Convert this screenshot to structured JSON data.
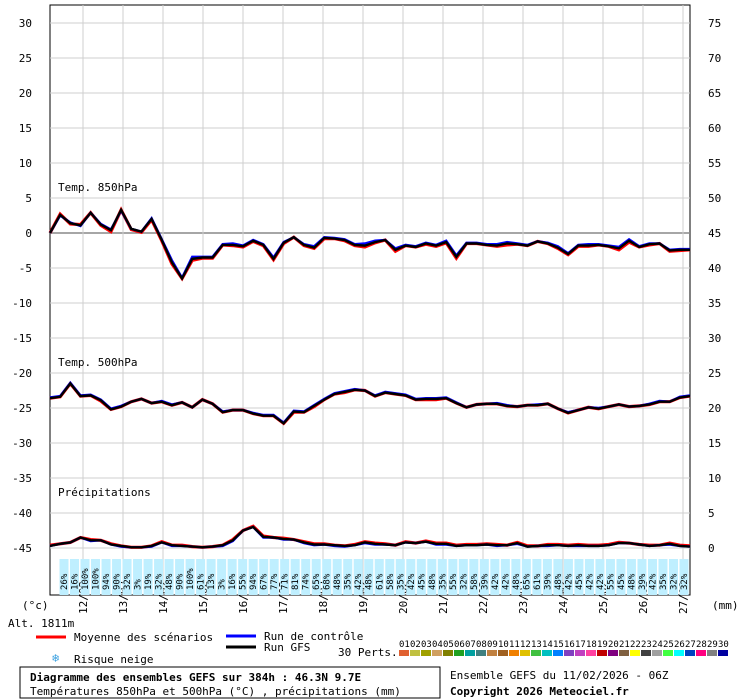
{
  "chart_data": {
    "type": "line",
    "title": "Diagramme des ensembles GEFS sur 384h : 46.3N 9.7E",
    "subtitle": "Températures 850hPa et 500hPa (°C) , précipitations (mm)",
    "run_info": "Ensemble GEFS du 11/02/2026 - 06Z",
    "copyright": "Copyright 2026 Meteociel.fr",
    "altitude": "Alt. 1811m",
    "y_left": {
      "label": "(°c)",
      "min": -45,
      "max": 30,
      "step": 5,
      "ticks": [
        "30",
        "25",
        "20",
        "15",
        "10",
        "5",
        "0",
        "-5",
        "-10",
        "-15",
        "-20",
        "-25",
        "-30",
        "-35",
        "-40",
        "-45"
      ]
    },
    "y_right": {
      "label": "(mm)",
      "min": 0,
      "max": 75,
      "step": 5,
      "ticks": [
        "75",
        "70",
        "65",
        "60",
        "55",
        "50",
        "45",
        "40",
        "35",
        "30",
        "25",
        "20",
        "15",
        "10",
        "5",
        "0"
      ]
    },
    "x_dates": [
      "12/02",
      "13/02",
      "14/02",
      "15/02",
      "16/02",
      "17/02",
      "18/02",
      "19/02",
      "20/02",
      "21/02",
      "22/02",
      "23/02",
      "24/02",
      "25/02",
      "26/02",
      "27/02"
    ],
    "sections": {
      "t850": "Temp. 850hPa",
      "t500": "Temp. 500hPa",
      "precip": "Précipitations"
    },
    "snow_risk": [
      "26%",
      "16%",
      "100%",
      "100%",
      "94%",
      "90%",
      "32%",
      "3%",
      "19%",
      "32%",
      "48%",
      "90%",
      "100%",
      "61%",
      "13%",
      "3%",
      "16%",
      "55%",
      "94%",
      "67%",
      "77%",
      "71%",
      "81%",
      "74%",
      "65%",
      "68%",
      "48%",
      "35%",
      "42%",
      "48%",
      "61%",
      "58%",
      "35%",
      "42%",
      "45%",
      "48%",
      "35%",
      "55%",
      "32%",
      "58%",
      "39%",
      "42%",
      "42%",
      "48%",
      "65%",
      "61%",
      "39%",
      "48%",
      "42%",
      "45%",
      "42%",
      "42%",
      "55%",
      "45%",
      "48%",
      "39%",
      "42%",
      "35%",
      "32%",
      "32%"
    ],
    "series": [
      {
        "name": "Moyenne des scénarios",
        "color": "#ff0000",
        "t850": [
          0,
          2.7,
          1.3,
          1.2,
          2.9,
          1.1,
          0.2,
          3.3,
          0.5,
          0.1,
          1.9,
          -1.1,
          -4.4,
          -6.5,
          -3.9,
          -3.6,
          -3.6,
          -1.7,
          -1.8,
          -2,
          -1.2,
          -1.8,
          -3.8,
          -1.5,
          -0.6,
          -1.8,
          -2.2,
          -0.8,
          -0.8,
          -1.1,
          -1.8,
          -2,
          -1.4,
          -1,
          -2.6,
          -1.8,
          -2,
          -1.6,
          -1.9,
          -1.4,
          -3.6,
          -1.5,
          -1.5,
          -1.7,
          -1.9,
          -1.7,
          -1.6,
          -1.8,
          -1.2,
          -1.5,
          -2.2,
          -3.1,
          -1.9,
          -1.9,
          -1.7,
          -1.9,
          -2.4,
          -1.3,
          -2,
          -1.7,
          -1.5,
          -2.6,
          -2.5,
          -2.4
        ],
        "t500": [
          -23.6,
          -23.4,
          -21.5,
          -23.3,
          -23.2,
          -24,
          -25.2,
          -24.8,
          -24.1,
          -23.7,
          -24.3,
          -24.1,
          -24.6,
          -24.2,
          -24.9,
          -23.8,
          -24.4,
          -25.6,
          -25.3,
          -25.3,
          -25.8,
          -26.1,
          -26.1,
          -27.2,
          -25.6,
          -25.6,
          -24.8,
          -23.8,
          -23,
          -22.8,
          -22.4,
          -22.5,
          -23.3,
          -22.8,
          -23,
          -23.2,
          -23.8,
          -23.8,
          -23.8,
          -23.6,
          -24.3,
          -24.9,
          -24.5,
          -24.4,
          -24.4,
          -24.7,
          -24.8,
          -24.6,
          -24.6,
          -24.4,
          -25.1,
          -25.7,
          -25.3,
          -24.9,
          -25.1,
          -24.8,
          -24.5,
          -24.8,
          -24.7,
          -24.5,
          -24.1,
          -24.1,
          -23.5,
          -23.3
        ],
        "precip": [
          0.4,
          0.6,
          0.8,
          1.5,
          1.2,
          1.1,
          0.6,
          0.3,
          0.1,
          0.1,
          0.3,
          0.9,
          0.4,
          0.4,
          0.2,
          0.1,
          0.2,
          0.4,
          1.2,
          2.5,
          3.1,
          1.7,
          1.5,
          1.4,
          1.2,
          0.9,
          0.6,
          0.6,
          0.4,
          0.3,
          0.5,
          0.9,
          0.7,
          0.6,
          0.4,
          0.9,
          0.7,
          1,
          0.7,
          0.7,
          0.4,
          0.5,
          0.5,
          0.6,
          0.5,
          0.4,
          0.8,
          0.3,
          0.3,
          0.5,
          0.5,
          0.4,
          0.5,
          0.4,
          0.4,
          0.5,
          0.8,
          0.7,
          0.5,
          0.4,
          0.4,
          0.7,
          0.4,
          0.3
        ]
      },
      {
        "name": "Run de contrôle",
        "color": "#0000ff",
        "t850": [
          0,
          2.5,
          1.5,
          1,
          2.9,
          1.3,
          0.5,
          3.2,
          0.6,
          0.2,
          2.1,
          -0.9,
          -3.9,
          -6.4,
          -3.4,
          -3.4,
          -3.4,
          -1.6,
          -1.5,
          -1.8,
          -1,
          -1.6,
          -3.5,
          -1.3,
          -0.6,
          -1.6,
          -1.9,
          -0.6,
          -0.7,
          -0.9,
          -1.6,
          -1.5,
          -1.1,
          -1,
          -2.2,
          -1.7,
          -1.9,
          -1.4,
          -1.7,
          -1.1,
          -3.2,
          -1.4,
          -1.4,
          -1.6,
          -1.6,
          -1.3,
          -1.5,
          -1.7,
          -1.2,
          -1.4,
          -1.9,
          -2.9,
          -1.7,
          -1.6,
          -1.6,
          -1.8,
          -2,
          -0.9,
          -1.9,
          -1.5,
          -1.5,
          -2.4,
          -2.3,
          -2.3
        ],
        "t500": [
          -23.5,
          -23.3,
          -21.4,
          -23.2,
          -23.1,
          -23.8,
          -25.1,
          -24.7,
          -24.1,
          -23.7,
          -24.3,
          -24,
          -24.5,
          -24.2,
          -24.9,
          -23.8,
          -24.4,
          -25.5,
          -25.3,
          -25.3,
          -25.7,
          -26,
          -26,
          -27.1,
          -25.4,
          -25.5,
          -24.6,
          -23.7,
          -22.9,
          -22.6,
          -22.3,
          -22.5,
          -23.2,
          -22.7,
          -22.9,
          -23.1,
          -23.7,
          -23.6,
          -23.6,
          -23.5,
          -24.2,
          -24.9,
          -24.5,
          -24.4,
          -24.3,
          -24.6,
          -24.8,
          -24.6,
          -24.5,
          -24.4,
          -25.1,
          -25.6,
          -25.3,
          -24.9,
          -25,
          -24.8,
          -24.5,
          -24.8,
          -24.7,
          -24.4,
          -24,
          -24.1,
          -23.4,
          -23.2
        ],
        "precip": [
          0.3,
          0.6,
          0.8,
          1.5,
          1,
          1.1,
          0.5,
          0.2,
          0.1,
          0.1,
          0.2,
          0.8,
          0.3,
          0.3,
          0.2,
          0.1,
          0.2,
          0.3,
          1,
          2.5,
          3,
          1.5,
          1.5,
          1.2,
          1.2,
          0.7,
          0.4,
          0.5,
          0.3,
          0.2,
          0.4,
          0.7,
          0.5,
          0.5,
          0.4,
          0.8,
          0.7,
          0.9,
          0.5,
          0.5,
          0.3,
          0.4,
          0.4,
          0.5,
          0.3,
          0.4,
          0.6,
          0.2,
          0.3,
          0.3,
          0.4,
          0.3,
          0.3,
          0.3,
          0.3,
          0.4,
          0.7,
          0.7,
          0.5,
          0.3,
          0.4,
          0.5,
          0.3,
          0.2
        ]
      },
      {
        "name": "Run GFS",
        "color": "#000000",
        "t850": [
          0,
          2.6,
          1.4,
          1.1,
          2.9,
          1.2,
          0.4,
          3.3,
          0.6,
          0.2,
          2,
          -1,
          -4.2,
          -6.5,
          -3.7,
          -3.5,
          -3.5,
          -1.7,
          -1.7,
          -1.9,
          -1.1,
          -1.7,
          -3.7,
          -1.4,
          -0.6,
          -1.7,
          -2.1,
          -0.7,
          -0.8,
          -1,
          -1.7,
          -1.8,
          -1.3,
          -1,
          -2.4,
          -1.8,
          -2,
          -1.5,
          -1.8,
          -1.3,
          -3.4,
          -1.5,
          -1.5,
          -1.7,
          -1.8,
          -1.5,
          -1.6,
          -1.8,
          -1.2,
          -1.5,
          -2.1,
          -3,
          -1.8,
          -1.8,
          -1.7,
          -1.9,
          -2.2,
          -1.1,
          -2,
          -1.6,
          -1.5,
          -2.5,
          -2.4,
          -2.4
        ],
        "t500": [
          -23.6,
          -23.4,
          -21.5,
          -23.3,
          -23.2,
          -23.9,
          -25.2,
          -24.8,
          -24.1,
          -23.7,
          -24.3,
          -24.1,
          -24.6,
          -24.2,
          -24.9,
          -23.8,
          -24.4,
          -25.6,
          -25.3,
          -25.3,
          -25.8,
          -26.1,
          -26.1,
          -27.2,
          -25.5,
          -25.6,
          -24.7,
          -23.8,
          -23,
          -22.7,
          -22.4,
          -22.5,
          -23.3,
          -22.8,
          -23,
          -23.2,
          -23.8,
          -23.7,
          -23.7,
          -23.6,
          -24.3,
          -24.9,
          -24.5,
          -24.4,
          -24.4,
          -24.7,
          -24.8,
          -24.6,
          -24.6,
          -24.4,
          -25.1,
          -25.7,
          -25.3,
          -24.9,
          -25.1,
          -24.8,
          -24.5,
          -24.8,
          -24.7,
          -24.5,
          -24.1,
          -24.1,
          -23.5,
          -23.3
        ],
        "precip": [
          0.3,
          0.6,
          0.8,
          1.5,
          1.1,
          1.1,
          0.5,
          0.3,
          0.1,
          0.1,
          0.3,
          0.8,
          0.4,
          0.3,
          0.2,
          0.1,
          0.2,
          0.4,
          1.1,
          2.5,
          3,
          1.6,
          1.5,
          1.3,
          1.2,
          0.8,
          0.5,
          0.5,
          0.4,
          0.3,
          0.4,
          0.8,
          0.6,
          0.5,
          0.4,
          0.8,
          0.7,
          0.9,
          0.6,
          0.6,
          0.3,
          0.4,
          0.4,
          0.5,
          0.4,
          0.4,
          0.7,
          0.2,
          0.3,
          0.4,
          0.4,
          0.3,
          0.4,
          0.3,
          0.3,
          0.4,
          0.7,
          0.7,
          0.5,
          0.3,
          0.4,
          0.6,
          0.3,
          0.2
        ]
      }
    ],
    "legend": {
      "mean": "Moyenne des scénarios",
      "control": "Run de contrôle",
      "gfs": "Run GFS",
      "snow": "Risque neige",
      "perts": "30 Perts."
    },
    "perturbations": {
      "labels": [
        "01",
        "02",
        "03",
        "04",
        "05",
        "06",
        "07",
        "08",
        "09",
        "10",
        "11",
        "12",
        "13",
        "14",
        "15",
        "16",
        "17",
        "18",
        "19",
        "20",
        "21",
        "22",
        "23",
        "24",
        "25",
        "26",
        "27",
        "28",
        "29",
        "30"
      ],
      "colors": [
        "#e06030",
        "#c0c040",
        "#a0a000",
        "#d0a060",
        "#808000",
        "#20a020",
        "#00a0a0",
        "#408080",
        "#c08040",
        "#a06020",
        "#f08000",
        "#e0c000",
        "#40c040",
        "#00c0c0",
        "#0080ff",
        "#8040c0",
        "#c040c0",
        "#ff40a0",
        "#c00000",
        "#800080",
        "#806040",
        "#ffff00",
        "#404040",
        "#a0a0a0",
        "#40ff40",
        "#00ffff",
        "#0040c0",
        "#ff0080",
        "#808080",
        "#0000a0"
      ]
    }
  }
}
